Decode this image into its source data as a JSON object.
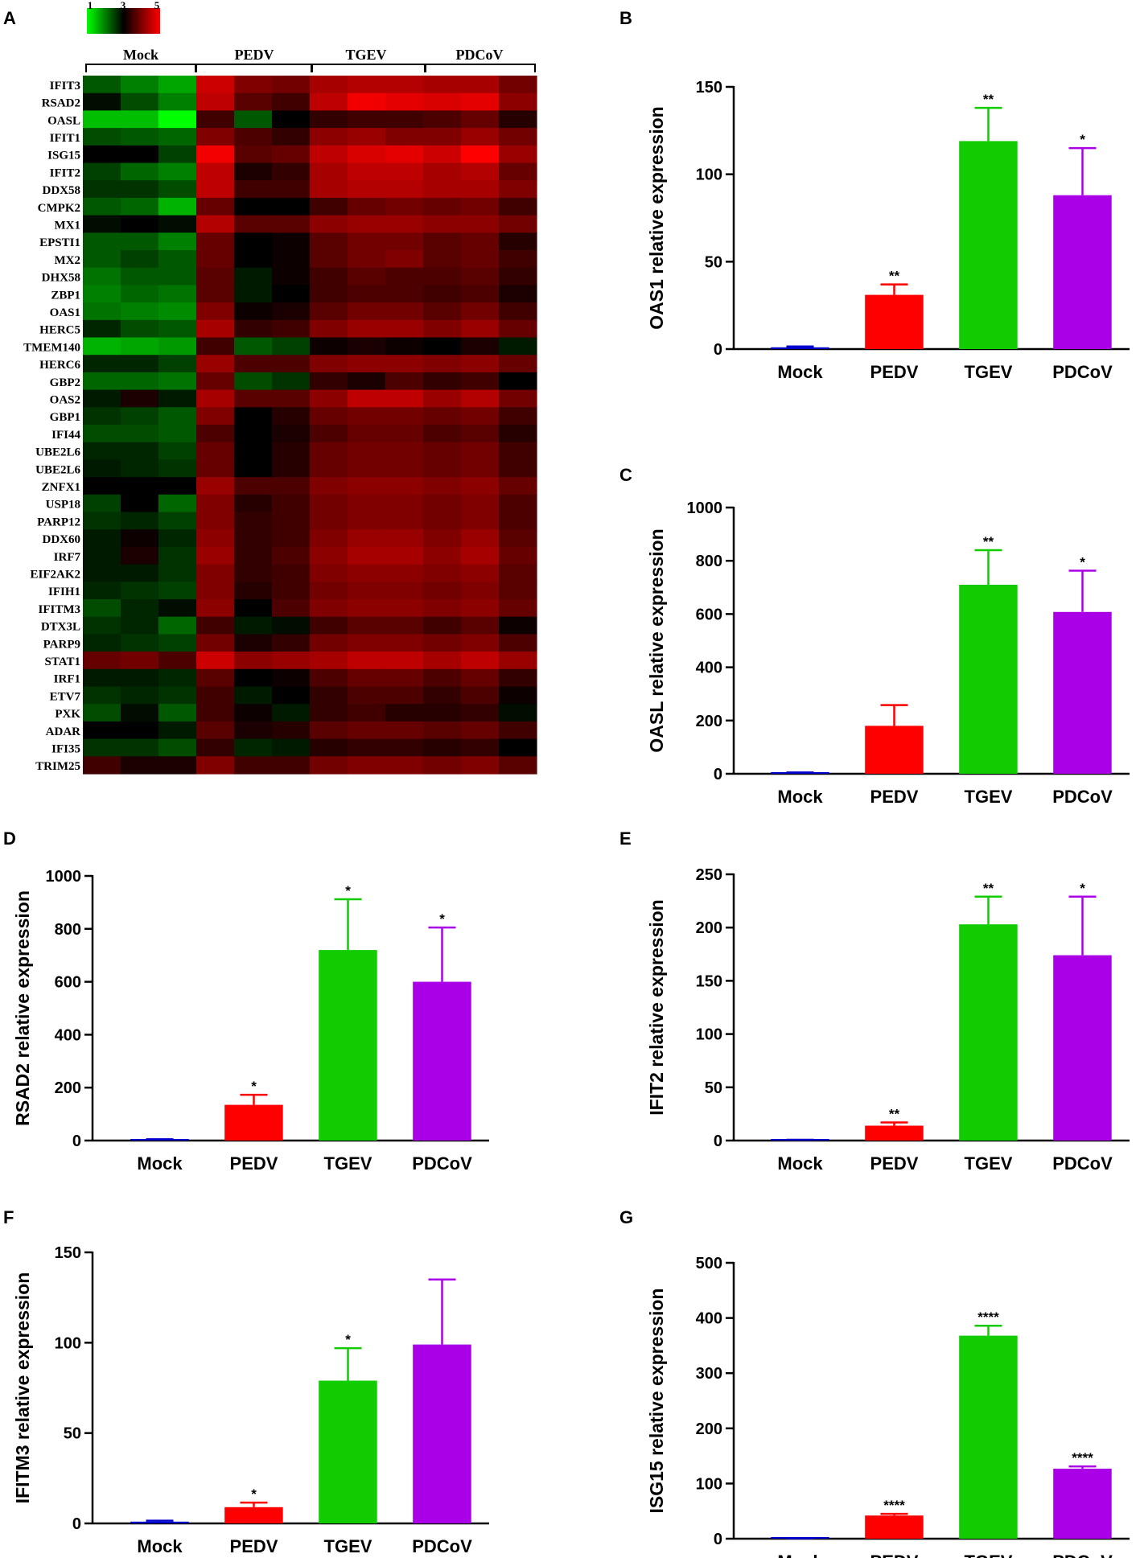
{
  "heatmap": {
    "panel_label": "A",
    "legend_ticks": [
      "1",
      "3",
      "5"
    ],
    "groups": [
      "Mock",
      "PEDV",
      "TGEV",
      "PDCoV"
    ],
    "genes": [
      "IFIT3",
      "RSAD2",
      "OASL",
      "IFIT1",
      "ISG15",
      "IFIT2",
      "DDX58",
      "CMPK2",
      "MX1",
      "EPSTI1",
      "MX2",
      "DHX58",
      "ZBP1",
      "OAS1",
      "HERC5",
      "TMEM140",
      "HERC6",
      "GBP2",
      "OAS2",
      "GBP1",
      "IFI44",
      "UBE2L6",
      "UBE2L6",
      "ZNFX1",
      "USP18",
      "PARP12",
      "DDX60",
      "IRF7",
      "EIF2AK2",
      "IFIH1",
      "IFITM3",
      "DTX3L",
      "PARP9",
      "STAT1",
      "IRF1",
      "ETV7",
      "PXK",
      "ADAR",
      "IFI35",
      "TRIM25"
    ],
    "colors": {
      "low": "#00ff00",
      "mid": "#000000",
      "high": "#ff0000"
    },
    "values": [
      [
        2.3,
        2.0,
        1.7,
        4.6,
        4.0,
        3.9,
        4.3,
        4.4,
        4.4,
        4.3,
        4.3,
        3.9
      ],
      [
        2.9,
        2.4,
        2.0,
        4.5,
        3.7,
        3.5,
        4.5,
        4.9,
        4.8,
        4.7,
        4.8,
        4.1
      ],
      [
        1.5,
        1.5,
        1.0,
        3.5,
        2.3,
        3.0,
        3.4,
        3.5,
        3.5,
        3.6,
        3.8,
        3.3
      ],
      [
        2.4,
        2.3,
        2.2,
        4.0,
        3.6,
        3.4,
        4.1,
        4.2,
        4.0,
        4.0,
        4.2,
        3.9
      ],
      [
        3.0,
        3.0,
        2.5,
        4.9,
        3.7,
        3.8,
        4.5,
        4.7,
        4.8,
        4.6,
        5.0,
        4.2
      ],
      [
        2.5,
        2.2,
        2.0,
        4.5,
        3.2,
        3.4,
        4.3,
        4.5,
        4.5,
        4.3,
        4.4,
        3.8
      ],
      [
        2.6,
        2.6,
        2.4,
        4.5,
        3.5,
        3.5,
        4.3,
        4.4,
        4.4,
        4.3,
        4.3,
        4.0
      ],
      [
        2.3,
        2.2,
        1.6,
        3.8,
        3.0,
        3.0,
        3.5,
        3.8,
        3.9,
        3.8,
        3.9,
        3.5
      ],
      [
        2.9,
        3.0,
        2.9,
        4.4,
        3.7,
        3.7,
        4.1,
        4.2,
        4.2,
        4.1,
        4.1,
        3.9
      ],
      [
        2.3,
        2.3,
        2.0,
        3.8,
        3.0,
        3.1,
        3.7,
        3.9,
        3.9,
        3.7,
        3.8,
        3.3
      ],
      [
        2.3,
        2.5,
        2.3,
        3.8,
        3.0,
        3.1,
        3.7,
        3.9,
        4.0,
        3.7,
        3.8,
        3.5
      ],
      [
        2.1,
        2.3,
        2.3,
        3.7,
        2.8,
        3.1,
        3.5,
        3.7,
        3.6,
        3.6,
        3.7,
        3.4
      ],
      [
        2.0,
        2.2,
        2.1,
        3.7,
        2.8,
        3.0,
        3.5,
        3.6,
        3.6,
        3.5,
        3.6,
        3.2
      ],
      [
        2.1,
        2.0,
        1.9,
        4.0,
        3.1,
        3.2,
        3.7,
        3.9,
        3.9,
        3.7,
        3.9,
        3.5
      ],
      [
        2.7,
        2.4,
        2.3,
        4.3,
        3.4,
        3.5,
        4.0,
        4.2,
        4.2,
        4.0,
        4.2,
        3.8
      ],
      [
        1.6,
        1.7,
        1.8,
        3.5,
        2.3,
        2.5,
        3.1,
        3.2,
        3.1,
        3.0,
        3.2,
        2.8
      ],
      [
        2.7,
        2.7,
        2.5,
        4.2,
        3.6,
        3.6,
        4.0,
        4.1,
        4.1,
        4.0,
        4.1,
        3.8
      ],
      [
        2.2,
        2.2,
        2.1,
        3.8,
        2.4,
        2.6,
        3.4,
        3.2,
        3.6,
        3.4,
        3.5,
        3.0
      ],
      [
        2.8,
        3.2,
        2.8,
        4.3,
        3.7,
        3.7,
        4.1,
        4.5,
        4.5,
        4.2,
        4.4,
        3.9
      ],
      [
        2.6,
        2.5,
        2.3,
        4.0,
        3.0,
        3.3,
        3.8,
        3.9,
        3.9,
        3.8,
        3.9,
        3.5
      ],
      [
        2.4,
        2.4,
        2.3,
        3.6,
        3.0,
        3.2,
        3.6,
        3.8,
        3.8,
        3.6,
        3.7,
        3.3
      ],
      [
        2.7,
        2.7,
        2.5,
        3.8,
        3.0,
        3.3,
        3.8,
        3.9,
        3.9,
        3.8,
        3.9,
        3.5
      ],
      [
        2.8,
        2.7,
        2.6,
        3.8,
        3.0,
        3.3,
        3.8,
        3.9,
        3.9,
        3.8,
        3.9,
        3.5
      ],
      [
        3.0,
        3.0,
        3.0,
        4.2,
        3.6,
        3.6,
        4.0,
        4.1,
        4.1,
        4.0,
        4.1,
        3.8
      ],
      [
        2.5,
        3.0,
        2.2,
        4.0,
        3.3,
        3.5,
        3.9,
        4.0,
        4.0,
        3.9,
        4.0,
        3.6
      ],
      [
        2.6,
        2.7,
        2.5,
        4.0,
        3.4,
        3.5,
        3.9,
        4.0,
        4.0,
        3.9,
        4.0,
        3.6
      ],
      [
        2.8,
        3.1,
        2.7,
        4.1,
        3.4,
        3.5,
        4.0,
        4.2,
        4.2,
        4.0,
        4.2,
        3.7
      ],
      [
        2.8,
        3.2,
        2.6,
        4.2,
        3.4,
        3.6,
        4.1,
        4.3,
        4.3,
        4.1,
        4.3,
        3.8
      ],
      [
        2.8,
        2.8,
        2.6,
        4.0,
        3.4,
        3.5,
        4.0,
        4.1,
        4.1,
        4.0,
        4.1,
        3.7
      ],
      [
        2.7,
        2.6,
        2.5,
        4.0,
        3.3,
        3.5,
        3.9,
        4.0,
        4.0,
        3.9,
        4.0,
        3.7
      ],
      [
        2.4,
        2.7,
        2.9,
        4.1,
        3.0,
        3.6,
        4.0,
        4.1,
        4.1,
        4.0,
        4.1,
        3.8
      ],
      [
        2.6,
        2.7,
        2.2,
        3.5,
        2.8,
        2.9,
        3.5,
        3.7,
        3.7,
        3.5,
        3.7,
        3.1
      ],
      [
        2.7,
        2.6,
        2.5,
        3.9,
        3.2,
        3.4,
        3.9,
        4.0,
        4.0,
        3.9,
        4.0,
        3.6
      ],
      [
        3.8,
        3.9,
        3.6,
        4.6,
        4.1,
        4.2,
        4.3,
        4.5,
        4.5,
        4.3,
        4.5,
        4.2
      ],
      [
        2.8,
        2.8,
        2.7,
        3.7,
        3.0,
        3.1,
        3.6,
        3.8,
        3.8,
        3.6,
        3.8,
        3.4
      ],
      [
        2.6,
        2.7,
        2.6,
        3.5,
        2.8,
        3.0,
        3.4,
        3.6,
        3.6,
        3.4,
        3.6,
        3.1
      ],
      [
        2.4,
        2.9,
        2.3,
        3.5,
        3.1,
        2.8,
        3.4,
        3.5,
        3.3,
        3.3,
        3.4,
        2.9
      ],
      [
        3.0,
        3.0,
        2.8,
        3.7,
        3.2,
        3.3,
        3.7,
        3.8,
        3.8,
        3.7,
        3.8,
        3.5
      ],
      [
        2.6,
        2.6,
        2.4,
        3.4,
        2.7,
        2.8,
        3.3,
        3.4,
        3.4,
        3.3,
        3.4,
        3.0
      ],
      [
        3.5,
        3.2,
        3.2,
        4.0,
        3.5,
        3.5,
        3.9,
        4.0,
        4.0,
        3.9,
        4.0,
        3.7
      ]
    ]
  },
  "chart_data": [
    {
      "panel": "B",
      "type": "bar",
      "ylabel": "OAS1 relative expression",
      "categories": [
        "Mock",
        "PEDV",
        "TGEV",
        "PDCoV"
      ],
      "values": [
        1,
        31,
        119,
        88
      ],
      "errors": [
        0.5,
        6,
        19,
        27
      ],
      "significance": [
        "",
        "**",
        "**",
        "*"
      ],
      "colors": [
        "#0000cc",
        "#ff0000",
        "#11cc00",
        "#aa00e8"
      ],
      "ylim": [
        0,
        150
      ],
      "yticks": [
        "0",
        "50",
        "100",
        "150"
      ]
    },
    {
      "panel": "C",
      "type": "bar",
      "ylabel": "OASL relative expression",
      "categories": [
        "Mock",
        "PEDV",
        "TGEV",
        "PDCoV"
      ],
      "values": [
        3,
        180,
        710,
        608
      ],
      "errors": [
        2,
        78,
        130,
        155
      ],
      "significance": [
        "",
        "",
        "**",
        "*"
      ],
      "colors": [
        "#0000cc",
        "#ff0000",
        "#11cc00",
        "#aa00e8"
      ],
      "ylim": [
        0,
        1000
      ],
      "yticks": [
        "0",
        "200",
        "400",
        "600",
        "800",
        "1000"
      ]
    },
    {
      "panel": "D",
      "type": "bar",
      "ylabel": "RSAD2 relative expression",
      "categories": [
        "Mock",
        "PEDV",
        "TGEV",
        "PDCoV"
      ],
      "values": [
        3,
        135,
        720,
        600
      ],
      "errors": [
        2,
        38,
        192,
        205
      ],
      "significance": [
        "",
        "*",
        "*",
        "*"
      ],
      "colors": [
        "#0000cc",
        "#ff0000",
        "#11cc00",
        "#aa00e8"
      ],
      "ylim": [
        0,
        1000
      ],
      "yticks": [
        "0",
        "200",
        "400",
        "600",
        "800",
        "1000"
      ]
    },
    {
      "panel": "E",
      "type": "bar",
      "ylabel": "IFIT2 relative expression",
      "categories": [
        "Mock",
        "PEDV",
        "TGEV",
        "PDCoV"
      ],
      "values": [
        0.5,
        14,
        203,
        174
      ],
      "errors": [
        0.3,
        3,
        26,
        55
      ],
      "significance": [
        "",
        "**",
        "**",
        "*"
      ],
      "colors": [
        "#0000cc",
        "#ff0000",
        "#11cc00",
        "#aa00e8"
      ],
      "ylim": [
        0,
        250
      ],
      "yticks": [
        "0",
        "50",
        "100",
        "150",
        "200",
        "250"
      ]
    },
    {
      "panel": "F",
      "type": "bar",
      "ylabel": "IFITM3 relative expression",
      "categories": [
        "Mock",
        "PEDV",
        "TGEV",
        "PDCoV"
      ],
      "values": [
        1,
        9,
        79,
        99
      ],
      "errors": [
        0.5,
        2.5,
        18,
        36
      ],
      "significance": [
        "",
        "*",
        "*",
        ""
      ],
      "colors": [
        "#0000cc",
        "#ff0000",
        "#11cc00",
        "#aa00e8"
      ],
      "ylim": [
        0,
        150
      ],
      "yticks": [
        "0",
        "50",
        "100",
        "150"
      ]
    },
    {
      "panel": "G",
      "type": "bar",
      "ylabel": "ISG15 relative expression",
      "categories": [
        "Mock",
        "PEDV",
        "TGEV",
        "PDCoV"
      ],
      "values": [
        0.5,
        42,
        368,
        127
      ],
      "errors": [
        0.3,
        3,
        18,
        4
      ],
      "significance": [
        "",
        "****",
        "****",
        "****"
      ],
      "colors": [
        "#0000cc",
        "#ff0000",
        "#11cc00",
        "#aa00e8"
      ],
      "ylim": [
        0,
        500
      ],
      "yticks": [
        "0",
        "100",
        "200",
        "300",
        "400",
        "500"
      ]
    }
  ]
}
